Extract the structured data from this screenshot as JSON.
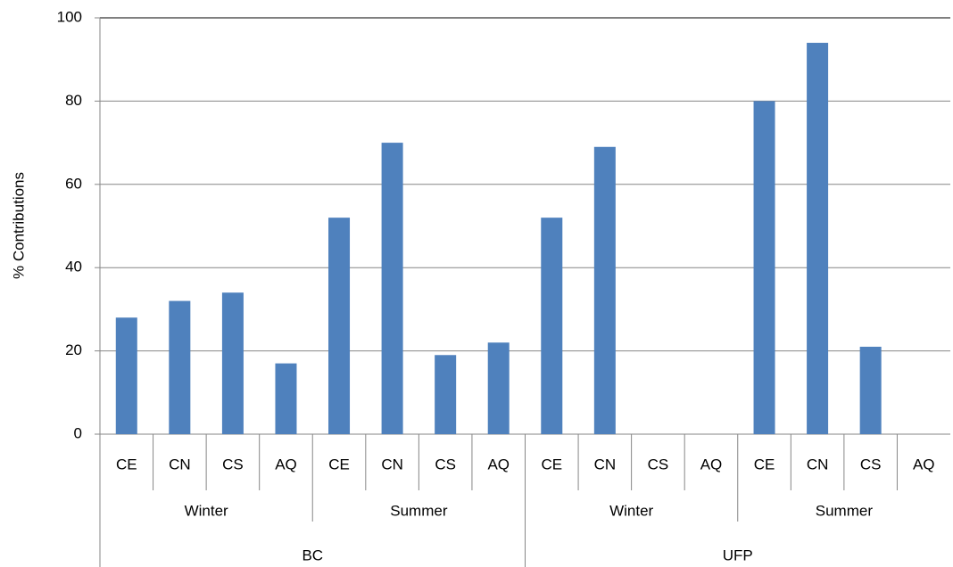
{
  "chart_data": {
    "type": "bar",
    "y_label": "% Contributions",
    "categories": [
      "CE",
      "CN",
      "CS",
      "AQ",
      "CE",
      "CN",
      "CS",
      "AQ",
      "CE",
      "CN",
      "CS",
      "AQ",
      "CE",
      "CN",
      "CS",
      "AQ"
    ],
    "subgroups": [
      "Winter",
      "Summer",
      "Winter",
      "Summer"
    ],
    "groups": [
      "BC",
      "UFP"
    ],
    "values": [
      28,
      32,
      34,
      17,
      52,
      70,
      19,
      22,
      52,
      69,
      null,
      null,
      80,
      94,
      21,
      null
    ],
    "color": "#4f81bd",
    "ylim": [
      0,
      100
    ],
    "yticks": [
      0,
      20,
      40,
      60,
      80,
      100
    ],
    "grid": true
  }
}
